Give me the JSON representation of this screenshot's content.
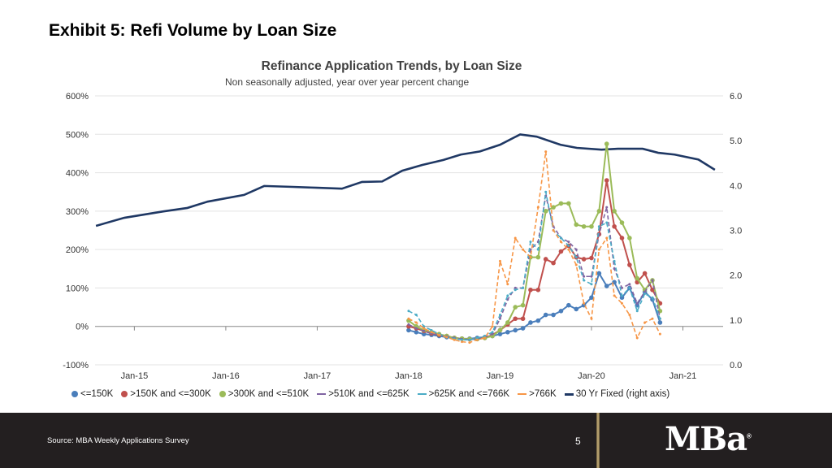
{
  "page": {
    "exhibit_title": "Exhibit 5: Refi Volume by Loan Size",
    "source": "Source: MBA Weekly Applications Survey",
    "page_number": "5",
    "logo_text": "MBA"
  },
  "chart_data": {
    "type": "line",
    "title": "Refinance Application Trends, by Loan Size",
    "subtitle": "Non seasonally adjusted, year over year percent change",
    "left_axis": {
      "min": -100,
      "max": 600,
      "step": 100,
      "ticks": [
        "-100%",
        "0%",
        "100%",
        "200%",
        "300%",
        "400%",
        "500%",
        "600%"
      ]
    },
    "right_axis": {
      "min": 0,
      "max": 6,
      "step": 1,
      "ticks": [
        "0.0",
        "1.0",
        "2.0",
        "3.0",
        "4.0",
        "5.0",
        "6.0"
      ]
    },
    "x_range": [
      2014.57,
      2021.44
    ],
    "x_ticks": [
      {
        "label": "Jan-15",
        "year": 2015
      },
      {
        "label": "Jan-16",
        "year": 2016
      },
      {
        "label": "Jan-17",
        "year": 2017
      },
      {
        "label": "Jan-18",
        "year": 2018
      },
      {
        "label": "Jan-19",
        "year": 2019
      },
      {
        "label": "Jan-20",
        "year": 2020
      },
      {
        "label": "Jan-21",
        "year": 2021
      }
    ],
    "grid": "horizontal",
    "legend_position": "bottom",
    "refi_start_year": 2018,
    "series": [
      {
        "name": "<=150K",
        "color": "#4a7ebb",
        "dashed": false,
        "values": [
          -10,
          -15,
          -20,
          -22,
          -25,
          -28,
          -30,
          -32,
          -32,
          -30,
          -28,
          -25,
          -20,
          -15,
          -10,
          -5,
          10,
          15,
          30,
          30,
          40,
          55,
          45,
          55,
          75,
          138,
          105,
          115,
          75,
          100,
          55,
          90,
          70,
          10
        ]
      },
      {
        "name": ">150K and <=300K",
        "color": "#c0504d",
        "dashed": false,
        "values": [
          0,
          -5,
          -12,
          -18,
          -22,
          -25,
          -30,
          -32,
          -33,
          -33,
          -30,
          -22,
          -10,
          5,
          20,
          20,
          95,
          95,
          175,
          165,
          195,
          210,
          180,
          175,
          178,
          240,
          380,
          260,
          230,
          160,
          115,
          138,
          95,
          60
        ]
      },
      {
        "name": ">300K and <=510K",
        "color": "#9bbb59",
        "dashed": false,
        "values": [
          15,
          0,
          -10,
          -15,
          -20,
          -25,
          -30,
          -32,
          -33,
          -33,
          -30,
          -25,
          -10,
          10,
          50,
          55,
          180,
          180,
          300,
          310,
          320,
          320,
          265,
          260,
          260,
          300,
          475,
          300,
          270,
          230,
          125,
          95,
          120,
          40
        ]
      },
      {
        "name": ">510K and <=625K",
        "color": "#8064a2",
        "dashed": true,
        "values": [
          5,
          -5,
          -12,
          -18,
          -22,
          -26,
          -30,
          -33,
          -35,
          -32,
          -28,
          -20,
          20,
          70,
          100,
          100,
          200,
          220,
          340,
          260,
          230,
          220,
          200,
          130,
          130,
          240,
          310,
          150,
          100,
          110,
          60,
          90,
          120,
          20
        ]
      },
      {
        "name": ">625K and <=766K",
        "color": "#4bacc6",
        "dashed": true,
        "values": [
          40,
          30,
          0,
          -10,
          -20,
          -28,
          -32,
          -35,
          -35,
          -30,
          -25,
          -15,
          30,
          80,
          95,
          100,
          220,
          200,
          350,
          250,
          230,
          210,
          180,
          120,
          110,
          260,
          270,
          170,
          80,
          100,
          40,
          85,
          75,
          20
        ]
      },
      {
        "name": ">766K",
        "color": "#f79646",
        "dashed": true,
        "values": [
          20,
          10,
          -5,
          -15,
          -22,
          -28,
          -35,
          -40,
          -42,
          -35,
          -30,
          0,
          170,
          110,
          230,
          200,
          180,
          310,
          455,
          250,
          220,
          200,
          160,
          60,
          20,
          200,
          230,
          80,
          60,
          30,
          -30,
          10,
          20,
          -20
        ]
      }
    ],
    "rate_series": {
      "name": "30 Yr Fixed (right axis)",
      "color": "#1f3864",
      "axis": "right",
      "x": [
        2014.58,
        2014.89,
        2015.31,
        2015.58,
        2015.8,
        2016.2,
        2016.42,
        2016.73,
        2017.0,
        2017.27,
        2017.49,
        2017.71,
        2017.93,
        2018.15,
        2018.38,
        2018.57,
        2018.78,
        2019.0,
        2019.22,
        2019.4,
        2019.66,
        2019.84,
        2020.11,
        2020.29,
        2020.56,
        2020.73,
        2020.91,
        2021.17,
        2021.35
      ],
      "y": [
        3.1,
        3.28,
        3.42,
        3.5,
        3.64,
        3.79,
        3.99,
        3.97,
        3.95,
        3.93,
        4.08,
        4.09,
        4.33,
        4.46,
        4.57,
        4.69,
        4.76,
        4.91,
        5.14,
        5.09,
        4.91,
        4.84,
        4.8,
        4.82,
        4.82,
        4.73,
        4.69,
        4.58,
        4.35
      ]
    }
  }
}
